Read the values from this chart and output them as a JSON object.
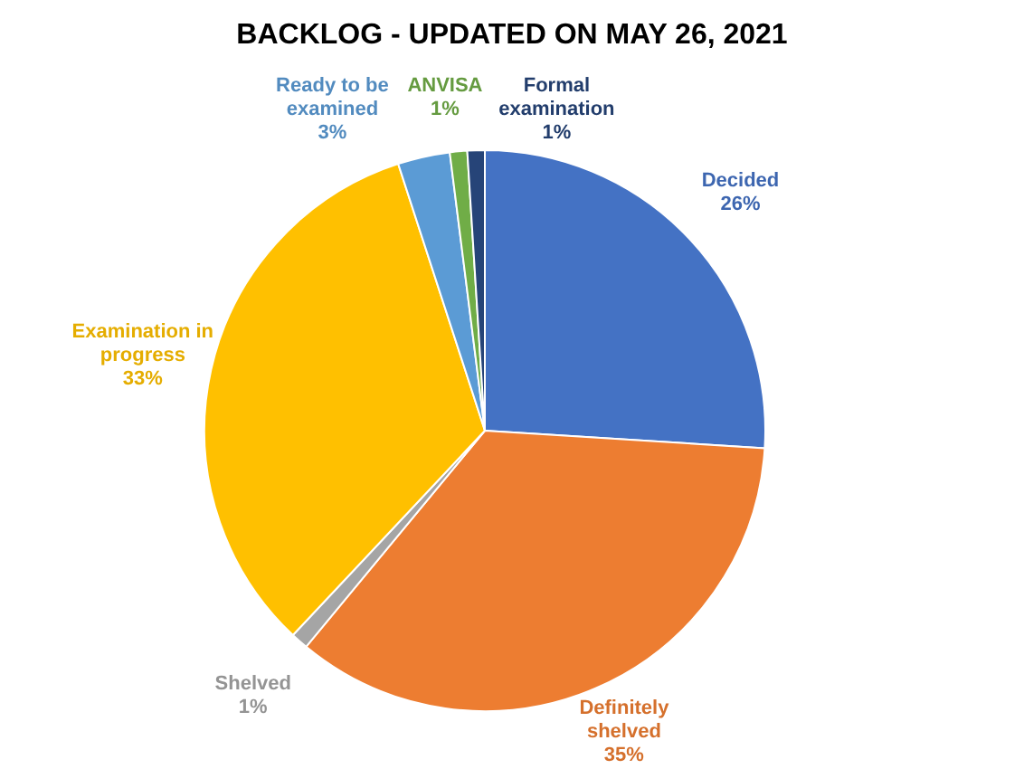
{
  "chart_data": {
    "type": "pie",
    "title": "BACKLOG - UPDATED ON MAY 26, 2021",
    "categories": [
      "Decided",
      "Definitely shelved",
      "Shelved",
      "Examination in progress",
      "Ready to be examined",
      "ANVISA",
      "Formal examination"
    ],
    "values": [
      26,
      35,
      1,
      33,
      3,
      1,
      1
    ],
    "value_labels": [
      "26%",
      "35%",
      "1%",
      "33%",
      "3%",
      "1%",
      "1%"
    ],
    "colors": [
      "#4472c4",
      "#ed7d31",
      "#a5a5a5",
      "#ffc000",
      "#5b9bd5",
      "#70ad47",
      "#264478"
    ],
    "legend": false
  }
}
